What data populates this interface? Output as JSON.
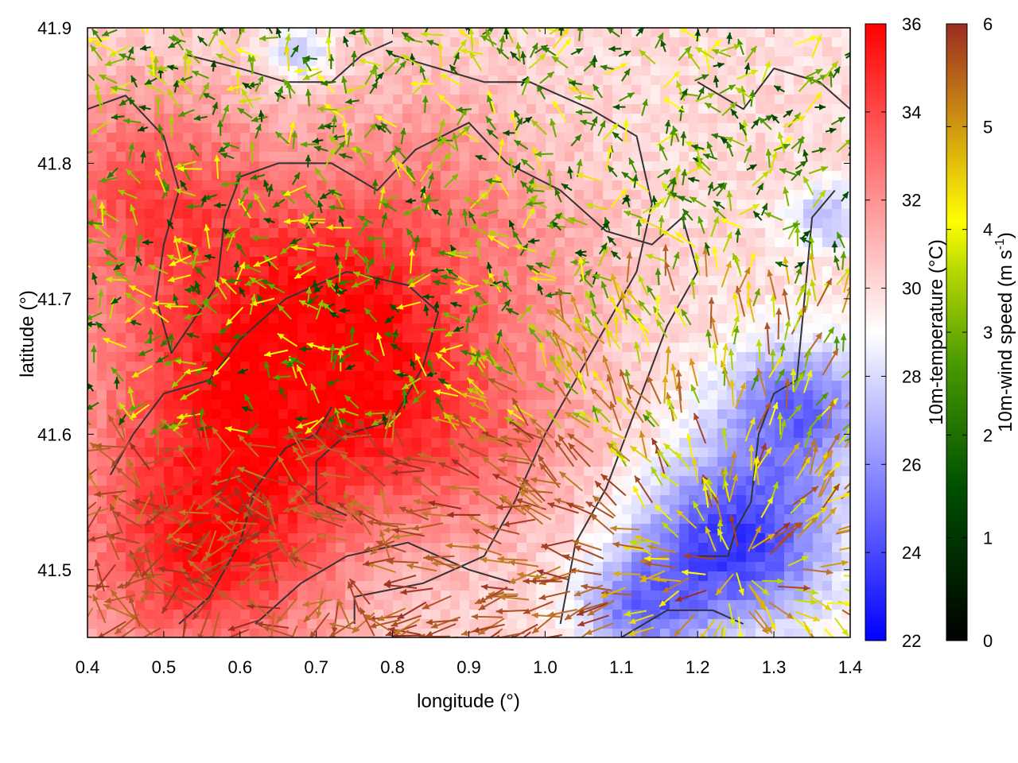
{
  "chart_data": {
    "type": "heatmap",
    "xlabel": "longitude (°)",
    "ylabel": "latitude (°)",
    "xlim": [
      0.4,
      1.4
    ],
    "ylim": [
      41.45,
      41.9
    ],
    "x_ticks": [
      "0.4",
      "0.5",
      "0.6",
      "0.7",
      "0.8",
      "0.9",
      "1.0",
      "1.1",
      "1.2",
      "1.3",
      "1.4"
    ],
    "y_ticks": [
      "41.5",
      "41.6",
      "41.7",
      "41.8",
      "41.9"
    ],
    "x_tick_values": [
      0.4,
      0.5,
      0.6,
      0.7,
      0.8,
      0.9,
      1.0,
      1.1,
      1.2,
      1.3,
      1.4
    ],
    "y_tick_values": [
      41.5,
      41.6,
      41.7,
      41.8,
      41.9
    ],
    "temperature_colorbar": {
      "label": "10m-temperature (°C)",
      "range": [
        22,
        36
      ],
      "ticks": [
        "22",
        "24",
        "26",
        "28",
        "30",
        "32",
        "34",
        "36"
      ],
      "tick_values": [
        22,
        24,
        26,
        28,
        30,
        32,
        34,
        36
      ],
      "colors": [
        "#0000ff",
        "#ffffff",
        "#ff0000"
      ]
    },
    "wind_speed_colorbar": {
      "label_main": "10m-wind speed (m s",
      "label_sup": "-1",
      "label_end": ")",
      "range": [
        0,
        6
      ],
      "ticks": [
        "0",
        "1",
        "2",
        "3",
        "4",
        "5",
        "6"
      ],
      "tick_values": [
        0,
        1,
        2,
        3,
        4,
        5,
        6
      ],
      "colors": [
        "#000000",
        "#006400",
        "#7ab800",
        "#ffff00",
        "#d4a010",
        "#c07a28",
        "#9a2c22"
      ]
    },
    "temperature_field": {
      "description_free": true,
      "blobs": [
        {
          "lon": 0.62,
          "lat": 41.62,
          "temp": 35.0,
          "r": 0.22
        },
        {
          "lon": 0.48,
          "lat": 41.78,
          "temp": 33.5,
          "r": 0.16
        },
        {
          "lon": 0.75,
          "lat": 41.7,
          "temp": 33.5,
          "r": 0.18
        },
        {
          "lon": 0.9,
          "lat": 41.6,
          "temp": 32.5,
          "r": 0.16
        },
        {
          "lon": 0.55,
          "lat": 41.5,
          "temp": 34.0,
          "r": 0.16
        },
        {
          "lon": 0.85,
          "lat": 41.8,
          "temp": 31.5,
          "r": 0.15
        },
        {
          "lon": 1.0,
          "lat": 41.73,
          "temp": 31.0,
          "r": 0.12
        },
        {
          "lon": 1.25,
          "lat": 41.52,
          "temp": 23.5,
          "r": 0.13
        },
        {
          "lon": 1.33,
          "lat": 41.62,
          "temp": 25.0,
          "r": 0.1
        },
        {
          "lon": 1.12,
          "lat": 41.47,
          "temp": 26.0,
          "r": 0.08
        },
        {
          "lon": 0.68,
          "lat": 41.88,
          "temp": 27.0,
          "r": 0.04
        },
        {
          "lon": 1.37,
          "lat": 41.76,
          "temp": 27.0,
          "r": 0.05
        }
      ]
    },
    "wind_vectors_note_free": true
  }
}
